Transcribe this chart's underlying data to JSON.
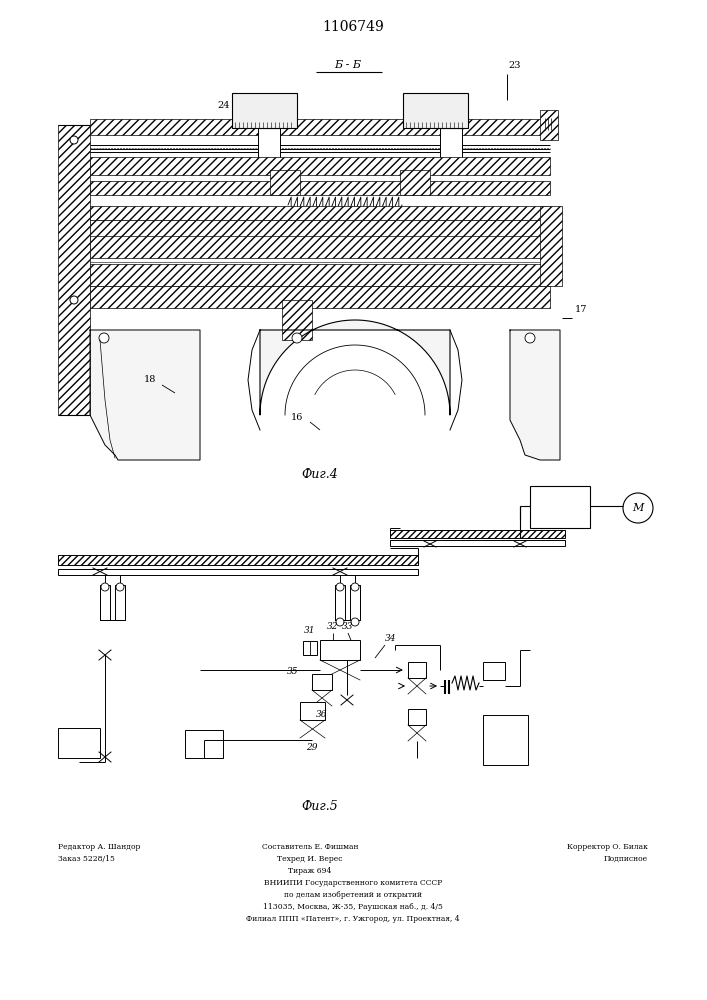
{
  "title": "1106749",
  "fig4_label": "Фиг.4",
  "fig5_label": "Фиг.5",
  "section_label": "Б - Б",
  "bg_color": "#ffffff",
  "line_color": "#000000",
  "fig_width": 7.07,
  "fig_height": 10.0,
  "dpi": 100
}
